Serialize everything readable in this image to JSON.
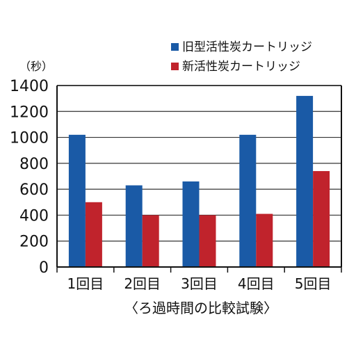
{
  "chart_data": {
    "type": "bar",
    "title": "",
    "unit_label": "（秒）",
    "xlabel": "〈ろ過時間の比較試験〉",
    "ylabel": "",
    "categories": [
      "1回目",
      "2回目",
      "3回目",
      "4回目",
      "5回目"
    ],
    "series": [
      {
        "name": "旧型活性炭カートリッジ",
        "color": "#1a5aa6",
        "values": [
          1020,
          630,
          660,
          1020,
          1320
        ]
      },
      {
        "name": "新活性炭カートリッジ",
        "color": "#c0232c",
        "values": [
          500,
          400,
          400,
          410,
          740
        ]
      }
    ],
    "ylim": [
      0,
      1400
    ],
    "yticks": [
      0,
      200,
      400,
      600,
      800,
      1000,
      1200,
      1400
    ],
    "grid": true,
    "legend_position": "top-right"
  }
}
